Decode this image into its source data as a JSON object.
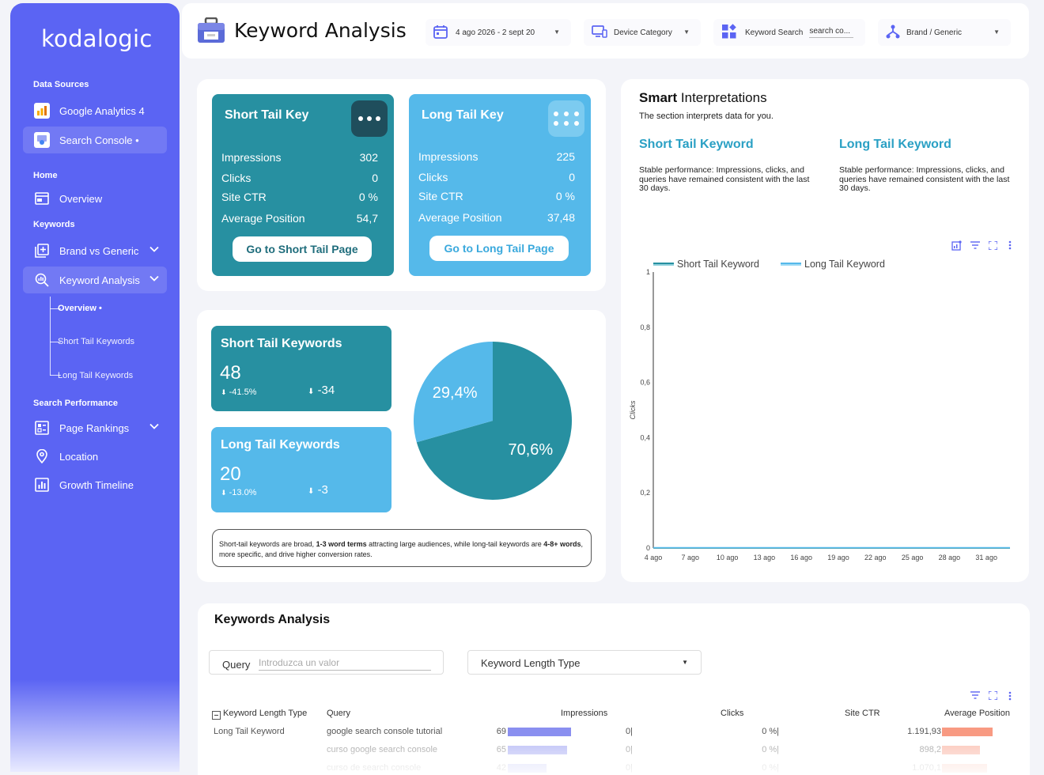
{
  "brand": {
    "logo": "kodalogic"
  },
  "sidebar": {
    "data_sources_label": "Data Sources",
    "google_analytics": "Google Analytics 4",
    "search_console": "Search Console •",
    "home_label": "Home",
    "overview": "Overview",
    "keywords_label": "Keywords",
    "brand_vs_generic": "Brand vs Generic",
    "keyword_analysis": "Keyword Analysis",
    "sub_overview": "Overview •",
    "sub_short_tail": "Short Tail Keywords",
    "sub_long_tail": "Long Tail Keywords",
    "search_performance_label": "Search Performance",
    "page_rankings": "Page Rankings",
    "location": "Location",
    "growth_timeline": "Growth Timeline"
  },
  "header": {
    "title": "Keyword Analysis",
    "date_range": "4 ago 2026 - 2 sept 20",
    "device_category": "Device Category",
    "keyword_search_label": "Keyword Search",
    "keyword_search_value": "search co...",
    "brand_generic": "Brand / Generic"
  },
  "short_tail_card": {
    "title": "Short Tail Key",
    "rows": [
      {
        "label": "Impressions",
        "value": "302"
      },
      {
        "label": "Clicks",
        "value": "0"
      },
      {
        "label": "Site CTR",
        "value": "0 %"
      },
      {
        "label": "Average Position",
        "value": "54,7"
      }
    ],
    "button": "Go to Short Tail Page"
  },
  "long_tail_card": {
    "title": "Long Tail Key",
    "rows": [
      {
        "label": "Impressions",
        "value": "225"
      },
      {
        "label": "Clicks",
        "value": "0"
      },
      {
        "label": "Site CTR",
        "value": "0 %"
      },
      {
        "label": "Average Position",
        "value": "37,48"
      }
    ],
    "button": "Go to Long Tail Page"
  },
  "counts": {
    "short": {
      "title": "Short Tail Keywords",
      "value": "48",
      "pct": "-41.5%",
      "delta": "-34"
    },
    "long": {
      "title": "Long Tail Keywords",
      "value": "20",
      "pct": "-13.0%",
      "delta": "-3"
    }
  },
  "pie": {
    "slices": [
      {
        "label": "70,6%",
        "value": 70.6,
        "color": "#2790a1"
      },
      {
        "label": "29,4%",
        "value": 29.4,
        "color": "#55b9ea"
      }
    ]
  },
  "note": {
    "p1": "Short-tail keywords are broad, ",
    "b1": "1-3 word terms",
    "p2": " attracting large audiences, while long-tail keywords are ",
    "b2": "4-8+ words",
    "p3": ", more specific, and drive higher conversion rates."
  },
  "smart": {
    "title_bold": "Smart",
    "title_rest": " Interpretations",
    "subtitle": "The section interprets data for you.",
    "short_heading": "Short Tail Keyword",
    "short_text": "Stable performance: Impressions, clicks, and queries have remained consistent with the last 30 days.",
    "long_heading": "Long Tail Keyword",
    "long_text": "Stable performance: Impressions, clicks, and queries have remained consistent with the last 30 days."
  },
  "chart_data": {
    "type": "line",
    "ylabel": "Clicks",
    "ylim": [
      0,
      1
    ],
    "y_ticks": [
      "1",
      "0,8",
      "0,6",
      "0,4",
      "0,2",
      "0"
    ],
    "x": [
      "4 ago",
      "7 ago",
      "10 ago",
      "13 ago",
      "16 ago",
      "19 ago",
      "22 ago",
      "25 ago",
      "28 ago",
      "31 ago"
    ],
    "series": [
      {
        "name": "Short Tail Keyword",
        "color": "#2790a1",
        "values": [
          0,
          0,
          0,
          0,
          0,
          0,
          0,
          0,
          0,
          0
        ]
      },
      {
        "name": "Long Tail Keyword",
        "color": "#55b9ea",
        "values": [
          0,
          0,
          0,
          0,
          0,
          0,
          0,
          0,
          0,
          0
        ]
      }
    ],
    "legend": "top-left",
    "grid": false
  },
  "keywords_table": {
    "title": "Keywords Analysis",
    "query_label": "Query",
    "query_placeholder": "Introduzca un valor",
    "length_select": "Keyword Length Type",
    "headers": [
      "Keyword Length Type",
      "Query",
      "Impressions",
      "Clicks",
      "Site CTR",
      "Average Position"
    ],
    "rows": [
      {
        "type": "Long Tail Keyword",
        "query": "google search console tutorial",
        "impressions": "69",
        "imp_value": 69,
        "clicks": "0",
        "ctr": "0 %",
        "avg_pos": "1.191,93",
        "pos_value": 1191.93
      },
      {
        "type": "",
        "query": "curso google search console",
        "impressions": "65",
        "imp_value": 65,
        "clicks": "0",
        "ctr": "0 %",
        "avg_pos": "898,2",
        "pos_value": 898.2
      },
      {
        "type": "",
        "query": "curso de search console",
        "impressions": "42",
        "imp_value": 42,
        "clicks": "0",
        "ctr": "0 %",
        "avg_pos": "1.070,1",
        "pos_value": 1070.1
      }
    ]
  }
}
